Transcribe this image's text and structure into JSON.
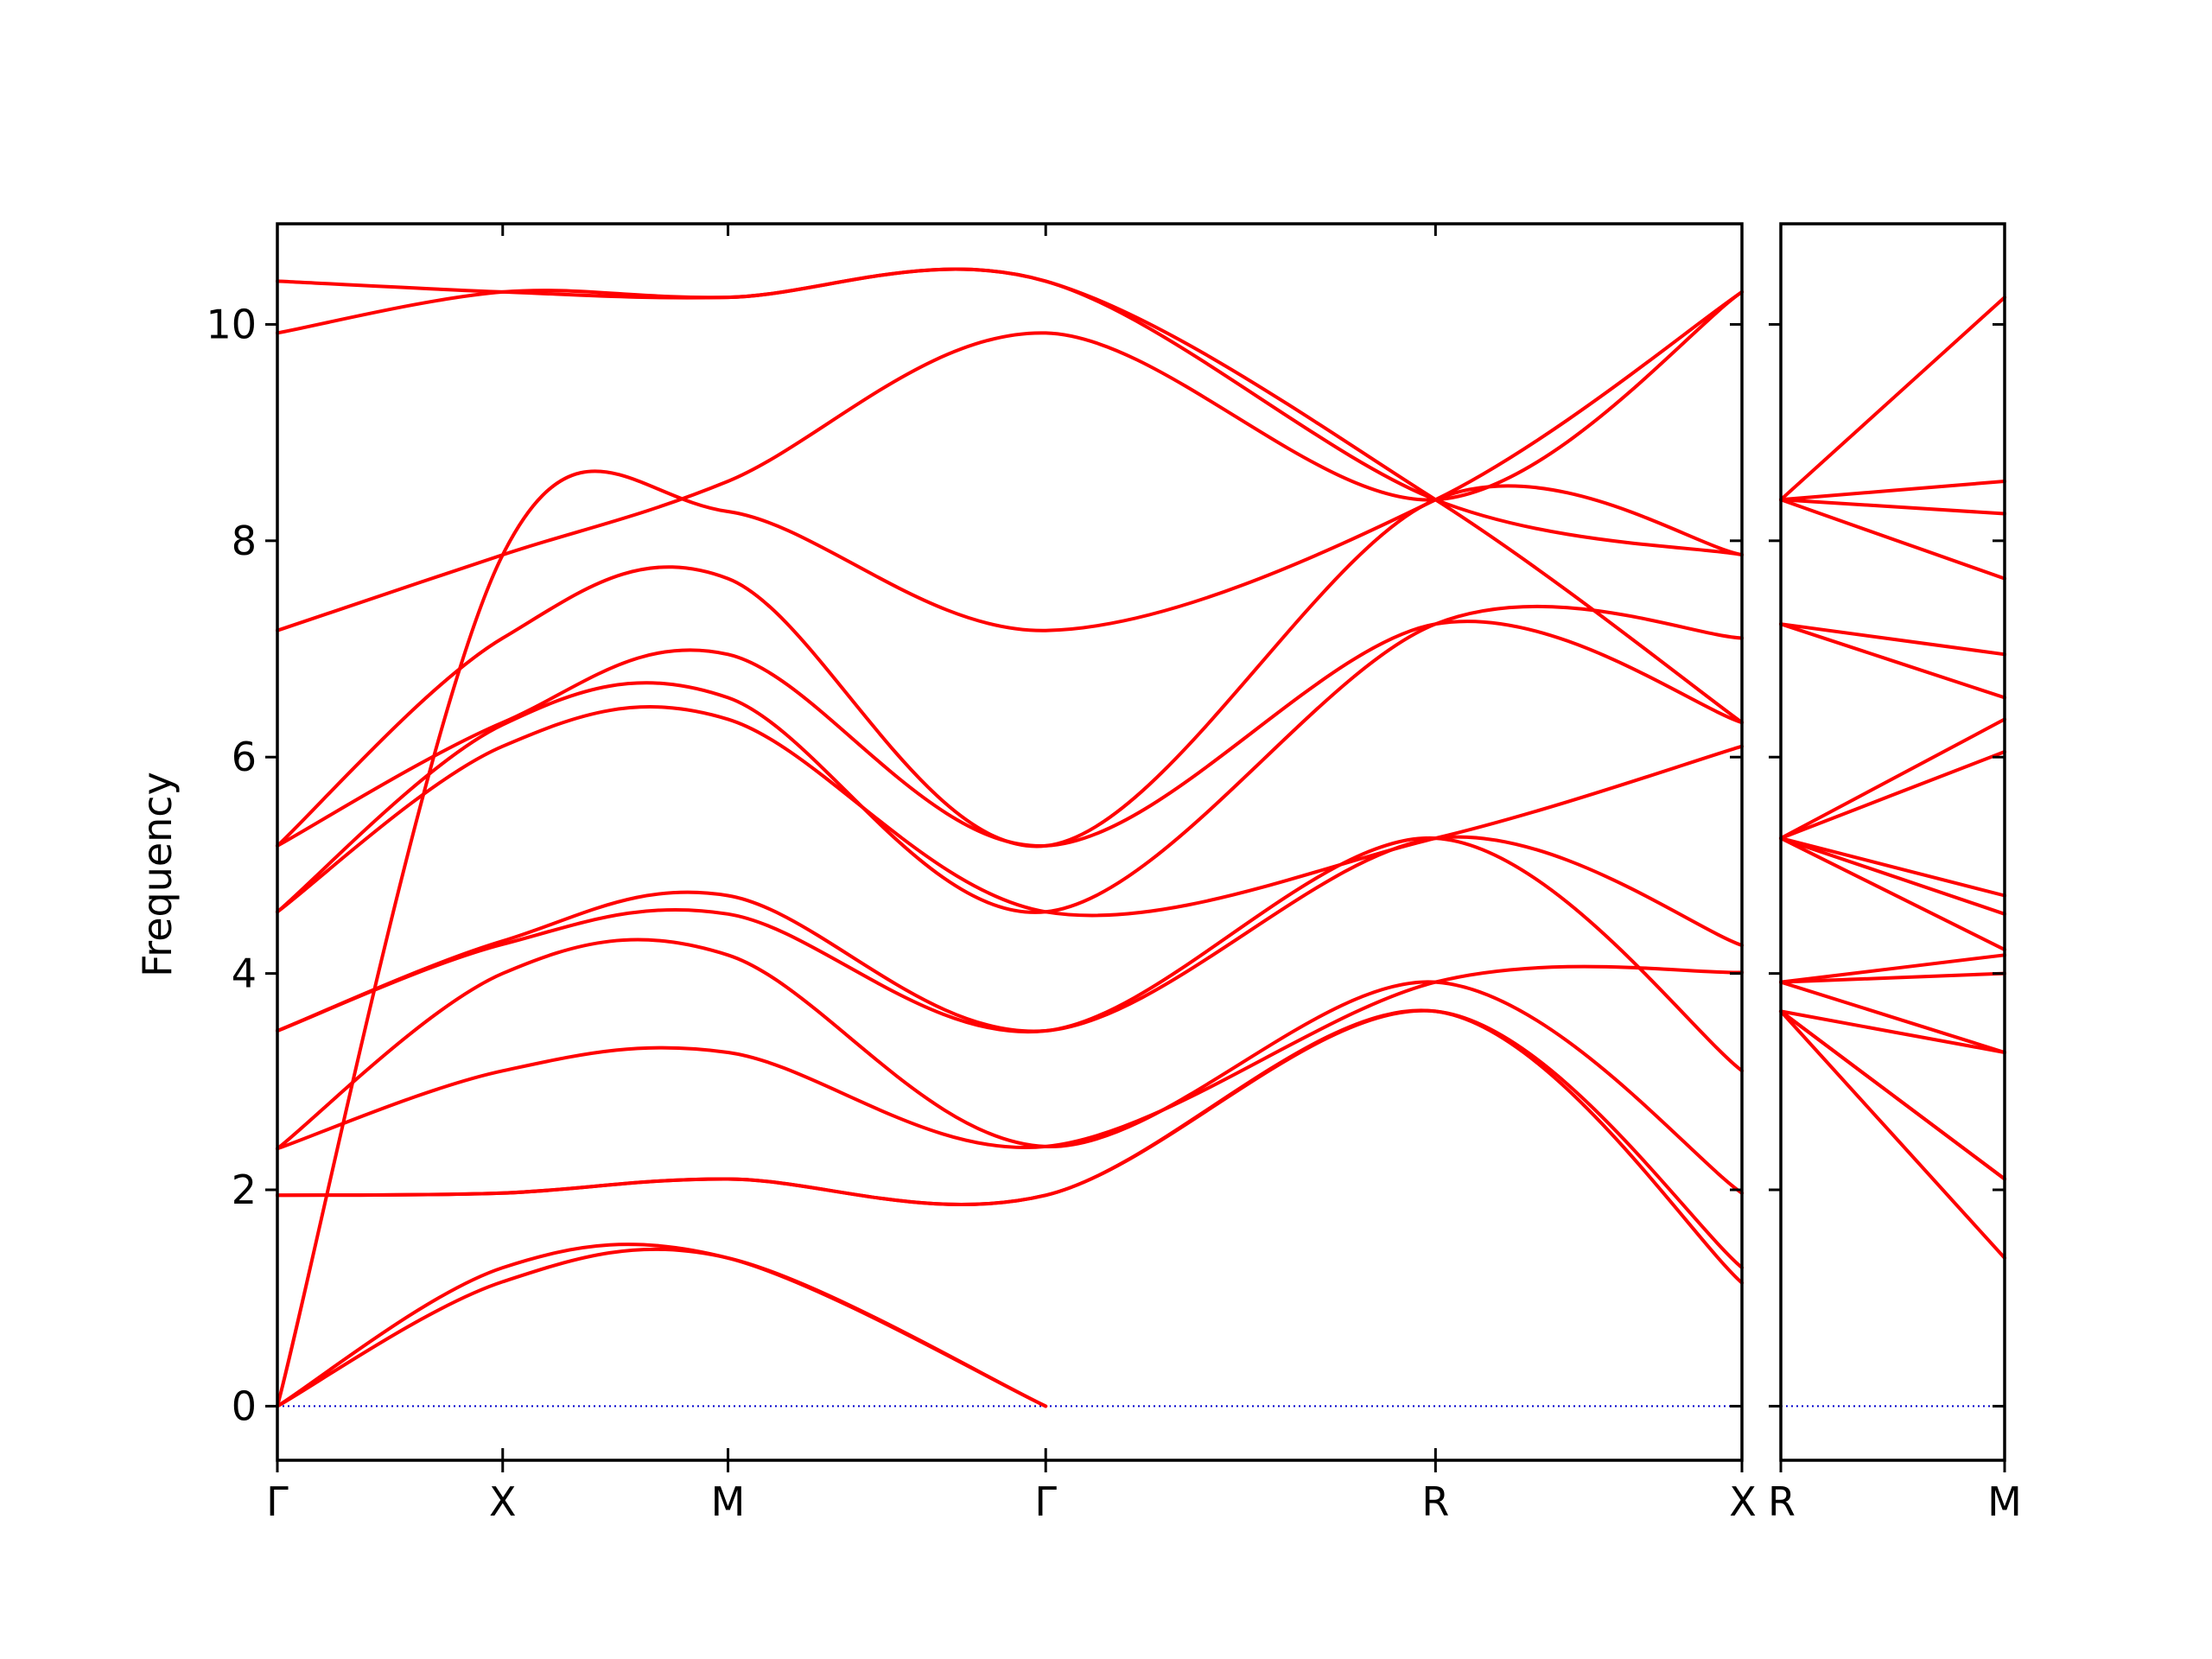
{
  "chart_data": [
    {
      "type": "line",
      "title": "",
      "xlabel": "",
      "ylabel": "Frequency",
      "ylim": [
        -0.5,
        10.93
      ],
      "xlim": [
        0,
        6.5
      ],
      "grid": false,
      "line_color": "#ff0000",
      "zero_line_color": "#0000cc",
      "yticks": [
        0,
        2,
        4,
        6,
        8,
        10
      ],
      "ytick_labels": [
        "0",
        "2",
        "4",
        "6",
        "8",
        "10"
      ],
      "xticks": [
        0,
        1,
        2,
        3.41,
        5.14,
        6.5
      ],
      "xtick_labels": [
        "Γ",
        "X",
        "M",
        "Γ",
        "R",
        "X"
      ],
      "bands": [
        [
          [
            0,
            0
          ],
          [
            1,
            1.15
          ],
          [
            2,
            1.37
          ],
          [
            3.41,
            0
          ]
        ],
        [
          [
            0,
            0
          ],
          [
            1,
            1.28
          ],
          [
            2,
            1.37
          ],
          [
            3.41,
            0
          ]
        ],
        [
          [
            0,
            0
          ],
          [
            1,
            7.87
          ],
          [
            2,
            8.27
          ],
          [
            3.41,
            7.17
          ],
          [
            5.14,
            8.38
          ],
          [
            6.5,
            10.3
          ]
        ],
        [
          [
            0,
            1.95
          ],
          [
            1,
            1.97
          ],
          [
            2,
            2.1
          ],
          [
            3.41,
            1.95
          ],
          [
            5.14,
            3.65
          ],
          [
            6.5,
            1.14
          ]
        ],
        [
          [
            0,
            1.95
          ],
          [
            1,
            1.97
          ],
          [
            2,
            2.1
          ],
          [
            3.41,
            1.95
          ],
          [
            5.14,
            3.65
          ],
          [
            6.5,
            1.28
          ]
        ],
        [
          [
            0,
            2.38
          ],
          [
            1,
            3.1
          ],
          [
            2,
            3.27
          ],
          [
            3.41,
            2.4
          ],
          [
            5.14,
            3.92
          ],
          [
            6.5,
            4.01
          ]
        ],
        [
          [
            0,
            2.38
          ],
          [
            1,
            4.0
          ],
          [
            2,
            4.17
          ],
          [
            3.41,
            2.4
          ],
          [
            5.14,
            3.92
          ],
          [
            6.5,
            1.97
          ]
        ],
        [
          [
            0,
            3.47
          ],
          [
            1,
            4.27
          ],
          [
            2,
            4.55
          ],
          [
            3.41,
            3.47
          ],
          [
            5.14,
            5.25
          ],
          [
            6.5,
            3.1
          ]
        ],
        [
          [
            0,
            3.47
          ],
          [
            1,
            4.3
          ],
          [
            2,
            4.72
          ],
          [
            3.41,
            3.47
          ],
          [
            5.14,
            5.25
          ],
          [
            6.5,
            4.26
          ]
        ],
        [
          [
            0,
            4.57
          ],
          [
            1,
            6.1
          ],
          [
            2,
            6.35
          ],
          [
            3.41,
            4.57
          ],
          [
            5.14,
            5.25
          ],
          [
            6.5,
            6.1
          ]
        ],
        [
          [
            0,
            4.57
          ],
          [
            1,
            6.3
          ],
          [
            2,
            6.55
          ],
          [
            3.41,
            4.57
          ],
          [
            5.14,
            7.23
          ],
          [
            6.5,
            7.1
          ]
        ],
        [
          [
            0,
            5.18
          ],
          [
            1,
            6.32
          ],
          [
            2,
            6.95
          ],
          [
            3.41,
            5.18
          ],
          [
            5.14,
            7.23
          ],
          [
            6.5,
            6.32
          ]
        ],
        [
          [
            0,
            5.18
          ],
          [
            1,
            7.1
          ],
          [
            2,
            7.65
          ],
          [
            3.41,
            5.18
          ],
          [
            5.14,
            8.38
          ],
          [
            6.5,
            7.87
          ]
        ],
        [
          [
            0,
            7.17
          ],
          [
            1,
            7.87
          ],
          [
            2,
            8.55
          ],
          [
            3.41,
            9.92
          ],
          [
            5.14,
            8.38
          ],
          [
            6.5,
            10.3
          ]
        ],
        [
          [
            0,
            9.92
          ],
          [
            1,
            10.3
          ],
          [
            2,
            10.25
          ],
          [
            3.41,
            10.4
          ],
          [
            5.14,
            8.38
          ],
          [
            6.5,
            7.87
          ]
        ],
        [
          [
            0,
            10.4
          ],
          [
            1,
            10.3
          ],
          [
            2,
            10.25
          ],
          [
            3.41,
            10.4
          ],
          [
            5.14,
            8.38
          ],
          [
            6.5,
            6.32
          ]
        ]
      ]
    },
    {
      "type": "line",
      "title": "",
      "xlabel": "",
      "ylabel": "",
      "ylim": [
        -0.5,
        10.93
      ],
      "xlim": [
        0,
        1
      ],
      "grid": false,
      "line_color": "#ff0000",
      "zero_line_color": "#0000cc",
      "xticks": [
        0,
        1
      ],
      "xtick_labels": [
        "R",
        "M"
      ],
      "bands": [
        [
          [
            0,
            3.65
          ],
          [
            1,
            1.37
          ]
        ],
        [
          [
            0,
            3.65
          ],
          [
            1,
            2.1
          ]
        ],
        [
          [
            0,
            3.65
          ],
          [
            1,
            2.1
          ]
        ],
        [
          [
            0,
            3.65
          ],
          [
            1,
            3.27
          ]
        ],
        [
          [
            0,
            3.92
          ],
          [
            1,
            3.27
          ]
        ],
        [
          [
            0,
            3.92
          ],
          [
            1,
            4.0
          ]
        ],
        [
          [
            0,
            3.92
          ],
          [
            1,
            4.17
          ]
        ],
        [
          [
            0,
            5.25
          ],
          [
            1,
            4.22
          ]
        ],
        [
          [
            0,
            5.25
          ],
          [
            1,
            4.55
          ]
        ],
        [
          [
            0,
            5.25
          ],
          [
            1,
            4.72
          ]
        ],
        [
          [
            0,
            5.25
          ],
          [
            1,
            6.05
          ]
        ],
        [
          [
            0,
            5.25
          ],
          [
            1,
            6.35
          ]
        ],
        [
          [
            0,
            7.23
          ],
          [
            1,
            6.55
          ]
        ],
        [
          [
            0,
            7.23
          ],
          [
            1,
            6.95
          ]
        ],
        [
          [
            0,
            8.38
          ],
          [
            1,
            7.65
          ]
        ],
        [
          [
            0,
            8.38
          ],
          [
            1,
            8.25
          ]
        ],
        [
          [
            0,
            8.38
          ],
          [
            1,
            8.55
          ]
        ],
        [
          [
            0,
            8.38
          ],
          [
            1,
            10.25
          ]
        ]
      ]
    }
  ]
}
